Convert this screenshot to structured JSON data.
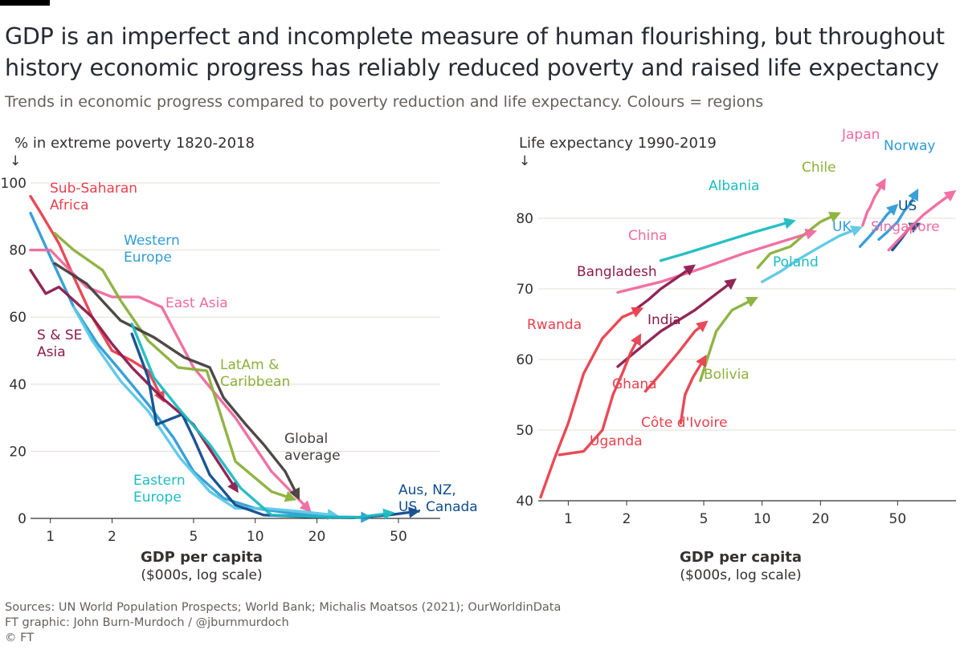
{
  "title_line1": "GDP is an imperfect and incomplete measure of human flourishing, but throughout",
  "title_line2": "history economic progress has reliably reduced poverty and raised life expectancy",
  "subtitle": "Trends in economic progress compared to poverty reduction and life expectancy. Colours = regions",
  "sources_line1": "Sources: UN World Population Prospects; World Bank; Michalis Moatsos (2021); OurWorldinData",
  "sources_line2": "FT graphic: John Burn-Murdoch / @jburnmurdoch",
  "copyright": "© FT",
  "colors": {
    "red": "#e8404d",
    "pink": "#f06a9e",
    "maroon": "#8c1c4e",
    "blue": "#2f9bd6",
    "navy": "#0f4c8c",
    "teal": "#1dbcc1",
    "lightblue": "#5cc8e6",
    "green": "#8bb13a",
    "dark": "#45403e"
  },
  "chart_data": [
    {
      "type": "line",
      "title": "% in extreme poverty 1820-2018",
      "xlabel": "GDP per capita",
      "xlabel_sub": "($000s, log scale)",
      "x_scale": "log",
      "xlim": [
        0.8,
        80
      ],
      "ylim": [
        0,
        100
      ],
      "x_ticks": [
        1,
        2,
        5,
        10,
        20,
        50
      ],
      "y_ticks": [
        0,
        20,
        40,
        60,
        80,
        100
      ],
      "series": [
        {
          "name": "Sub-Saharan Africa",
          "color": "red",
          "label_lines": [
            "Sub-Saharan",
            "Africa"
          ],
          "x": [
            0.8,
            0.9,
            1.1,
            1.3,
            1.6,
            2.0,
            2.5,
            3.0,
            3.5
          ],
          "y": [
            96,
            91,
            82,
            72,
            60,
            50,
            47,
            44,
            36
          ]
        },
        {
          "name": "Western Europe",
          "color": "blue",
          "label_lines": [
            "Western",
            "Europe"
          ],
          "x": [
            0.8,
            1.0,
            1.3,
            1.7,
            2.2,
            3.0,
            4.0,
            5.0,
            7.0,
            10.0,
            15.0,
            22.0,
            35.0
          ],
          "y": [
            91,
            78,
            63,
            52,
            44,
            34,
            24,
            14,
            6,
            3,
            1.5,
            0.5,
            0.3
          ]
        },
        {
          "name": "East Asia",
          "color": "pink",
          "label_lines": [
            "East Asia"
          ],
          "x": [
            0.8,
            1.0,
            1.2,
            1.5,
            2.0,
            2.7,
            3.5,
            5.0,
            8.0,
            12.0,
            18.0
          ],
          "y": [
            80,
            80,
            75,
            69,
            66,
            66,
            63,
            45,
            30,
            14,
            3
          ]
        },
        {
          "name": "S & SE Asia",
          "color": "maroon",
          "label_lines": [
            "S & SE",
            "Asia"
          ],
          "x": [
            0.8,
            0.95,
            1.1,
            1.3,
            1.6,
            2.0,
            2.5,
            3.5,
            5.0,
            8.0
          ],
          "y": [
            74,
            67,
            69,
            65,
            60,
            52,
            45,
            36,
            28,
            9
          ]
        },
        {
          "name": "LatAm & Caribbean",
          "color": "green",
          "label_lines": [
            "LatAm &",
            "Caribbean"
          ],
          "x": [
            1.05,
            1.3,
            1.8,
            2.2,
            3.0,
            4.2,
            5.8,
            8.0,
            12.0,
            15.0
          ],
          "y": [
            85,
            80,
            74,
            65,
            53,
            45,
            44,
            17,
            8,
            6
          ]
        },
        {
          "name": "Global average",
          "color": "dark",
          "label_lines": [
            "Global",
            "average"
          ],
          "x": [
            1.05,
            1.5,
            2.2,
            3.2,
            4.5,
            6.0,
            7.0,
            9.0,
            11.0,
            14.0,
            16.0
          ],
          "y": [
            76,
            70,
            59,
            54,
            48,
            45,
            36,
            28,
            22,
            14,
            7
          ]
        },
        {
          "name": "Eastern Europe",
          "color": "lightblue",
          "label_lines": [
            "Eastern",
            "Europe"
          ],
          "x": [
            1.3,
            1.6,
            2.2,
            3.0,
            4.3,
            6.0,
            8.0,
            11.0,
            17.0,
            24.0
          ],
          "y": [
            63,
            53,
            41,
            32,
            18,
            8,
            3,
            3,
            2,
            1
          ]
        },
        {
          "name": "Aus, NZ, US, Canada",
          "color": "navy",
          "label_lines": [
            "Aus, NZ,",
            "US, Canada"
          ],
          "x": [
            2.5,
            3.0,
            3.3,
            4.4,
            5.0,
            6.0,
            8.0,
            11.0,
            18.0,
            30.0,
            45.0,
            60.0
          ],
          "y": [
            55,
            42,
            28,
            31,
            24,
            13,
            4,
            1,
            0.5,
            0.2,
            1,
            2
          ]
        },
        {
          "name": "Eastern Europe (tail)",
          "color": "teal",
          "label_lines": [],
          "x": [
            2.5,
            3.2,
            4.2,
            6.0,
            8.5,
            12.0,
            20.0,
            32.0,
            45.0
          ],
          "y": [
            58,
            42,
            33,
            22,
            9,
            1,
            0.5,
            0.3,
            1.5
          ]
        }
      ]
    },
    {
      "type": "line",
      "title": "Life expectancy 1990-2019",
      "xlabel": "GDP per capita",
      "xlabel_sub": "($000s, log scale)",
      "x_scale": "log",
      "xlim": [
        0.7,
        100
      ],
      "ylim": [
        40,
        85
      ],
      "x_ticks": [
        1,
        2,
        5,
        10,
        20,
        50
      ],
      "y_ticks": [
        40,
        50,
        60,
        70,
        80
      ],
      "series": [
        {
          "name": "Japan",
          "color": "pink",
          "label_lines": [
            "Japan"
          ],
          "x": [
            33,
            35,
            36,
            38,
            40,
            42
          ],
          "y": [
            79,
            81,
            81.5,
            83,
            84,
            85
          ]
        },
        {
          "name": "Norway",
          "color": "blue",
          "label_lines": [
            "Norway"
          ],
          "x": [
            40,
            44,
            50,
            54,
            58,
            62
          ],
          "y": [
            77,
            78,
            79.5,
            81,
            82,
            83.5
          ]
        },
        {
          "name": "Chile",
          "color": "green",
          "label_lines": [
            "Chile"
          ],
          "x": [
            9.5,
            11,
            14,
            17,
            20,
            24
          ],
          "y": [
            73,
            75,
            76,
            78,
            79.5,
            80.5
          ]
        },
        {
          "name": "Albania",
          "color": "teal",
          "label_lines": [
            "Albania"
          ],
          "x": [
            3.0,
            4.0,
            6.0,
            9.0,
            14.0
          ],
          "y": [
            74,
            75,
            76.5,
            78,
            79.5
          ]
        },
        {
          "name": "UK",
          "color": "blue",
          "label_lines": [
            "UK"
          ],
          "x": [
            32,
            36,
            40,
            44,
            48
          ],
          "y": [
            76,
            77.5,
            79,
            80.5,
            81.5
          ]
        },
        {
          "name": "US",
          "color": "navy",
          "label_lines": [
            "US"
          ],
          "x": [
            47,
            52,
            57,
            62
          ],
          "y": [
            75.5,
            77,
            78.5,
            79
          ]
        },
        {
          "name": "Singapore",
          "color": "pink",
          "label_lines": [
            "Singapore"
          ],
          "x": [
            45,
            55,
            68,
            80,
            95
          ],
          "y": [
            75.5,
            78,
            80.5,
            82,
            83.5
          ]
        },
        {
          "name": "China",
          "color": "pink",
          "label_lines": [
            "China"
          ],
          "x": [
            1.8,
            3.0,
            5.0,
            8.0,
            12.0,
            18.0
          ],
          "y": [
            69.5,
            71,
            73,
            75,
            76.5,
            78
          ]
        },
        {
          "name": "Poland",
          "color": "lightblue",
          "label_lines": [
            "Poland"
          ],
          "x": [
            10.0,
            12.5,
            15.0,
            20.0,
            25.0,
            31.0
          ],
          "y": [
            71,
            72.5,
            74,
            76,
            77.5,
            78.5
          ]
        },
        {
          "name": "Bangladesh",
          "color": "maroon",
          "label_lines": [
            "Bangladesh"
          ],
          "x": [
            2.2,
            2.6,
            3.0,
            3.6,
            4.3
          ],
          "y": [
            67,
            68.5,
            70,
            71.5,
            73
          ]
        },
        {
          "name": "India",
          "color": "maroon",
          "label_lines": [
            "India"
          ],
          "x": [
            1.8,
            2.2,
            3.0,
            4.5,
            7.0
          ],
          "y": [
            59,
            61,
            64,
            67,
            71
          ]
        },
        {
          "name": "Rwanda",
          "color": "red",
          "label_lines": [
            "Rwanda"
          ],
          "x": [
            0.72,
            0.85,
            1.0,
            1.2,
            1.5,
            1.9,
            2.3
          ],
          "y": [
            40.5,
            46,
            51,
            58,
            63,
            66,
            67
          ]
        },
        {
          "name": "Uganda",
          "color": "red",
          "label_lines": [
            "Uganda"
          ],
          "x": [
            0.9,
            1.2,
            1.5,
            1.7,
            1.9,
            2.1,
            2.3
          ],
          "y": [
            46.5,
            47,
            50,
            55,
            58,
            61,
            63
          ]
        },
        {
          "name": "Ghana",
          "color": "red",
          "label_lines": [
            "Ghana"
          ],
          "x": [
            2.5,
            3.0,
            3.7,
            4.5,
            5.0
          ],
          "y": [
            55.5,
            58,
            61,
            64,
            65
          ]
        },
        {
          "name": "Bolivia",
          "color": "green",
          "label_lines": [
            "Bolivia"
          ],
          "x": [
            4.8,
            5.2,
            5.8,
            7.0,
            9.0
          ],
          "y": [
            57,
            60,
            64,
            67,
            68.5
          ]
        },
        {
          "name": "Côte d'Ivoire",
          "color": "red",
          "label_lines": [
            "Côte d'Ivoire"
          ],
          "x": [
            3.8,
            4.0,
            4.4,
            5.0
          ],
          "y": [
            51,
            55,
            57.5,
            60
          ]
        }
      ]
    }
  ],
  "left_labels": {
    "y_arrow": "↓",
    "ticks": [
      "0",
      "20",
      "40",
      "60",
      "80",
      "100"
    ],
    "xticks": [
      "1",
      "2",
      "5",
      "10",
      "20",
      "50"
    ]
  },
  "right_labels": {
    "y_arrow": "↓",
    "ticks": [
      "40",
      "50",
      "60",
      "70",
      "80"
    ],
    "xticks": [
      "1",
      "2",
      "5",
      "10",
      "20",
      "50"
    ]
  }
}
